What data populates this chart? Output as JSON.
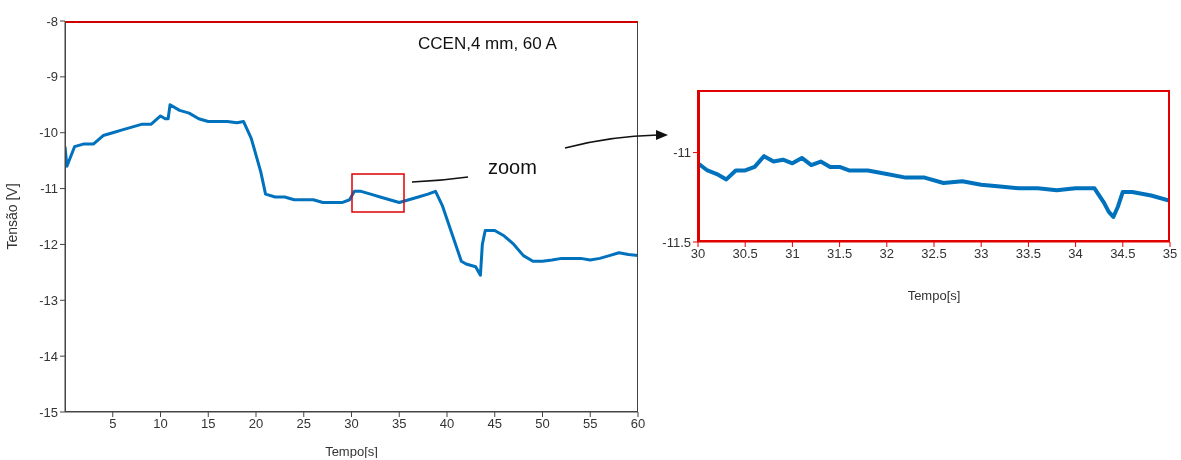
{
  "chart_data": [
    {
      "type": "line",
      "xlabel": "Tempo[s]",
      "ylabel": "Tensão [V]",
      "annotations": [
        "CCEN,4 mm, 60 A",
        "zoom"
      ],
      "xlim": [
        0,
        60
      ],
      "ylim": [
        -15,
        -8
      ],
      "xticks": [
        5,
        10,
        15,
        20,
        25,
        30,
        35,
        40,
        45,
        50,
        55,
        60
      ],
      "yticks": [
        -15,
        -14,
        -13,
        -12,
        -11,
        -10,
        -9,
        -8
      ],
      "grid": false,
      "legend": false,
      "series": [
        {
          "color": "#0072bd",
          "x": [
            0,
            0.2,
            1,
            2,
            3,
            4,
            5,
            6,
            7,
            8,
            9,
            10,
            10.5,
            10.8,
            11,
            12,
            13,
            14,
            15,
            16,
            17,
            18,
            18.7,
            19.5,
            20.5,
            21,
            22,
            23,
            24,
            25,
            26,
            27,
            28,
            29,
            29.8,
            30.3,
            31,
            32,
            33,
            34,
            35,
            36,
            37,
            38,
            38.8,
            39.5,
            40.5,
            41.5,
            42,
            43,
            43.5,
            43.7,
            44,
            45,
            46,
            47,
            48,
            49,
            50,
            51,
            52,
            53,
            54,
            55,
            56,
            57,
            58,
            59,
            60
          ],
          "values": [
            -10.25,
            -10.6,
            -10.25,
            -10.2,
            -10.2,
            -10.05,
            -10.0,
            -9.95,
            -9.9,
            -9.85,
            -9.85,
            -9.7,
            -9.75,
            -9.75,
            -9.5,
            -9.6,
            -9.65,
            -9.75,
            -9.8,
            -9.8,
            -9.8,
            -9.82,
            -9.8,
            -10.1,
            -10.7,
            -11.1,
            -11.15,
            -11.15,
            -11.2,
            -11.2,
            -11.2,
            -11.25,
            -11.25,
            -11.25,
            -11.2,
            -11.05,
            -11.05,
            -11.1,
            -11.15,
            -11.2,
            -11.25,
            -11.2,
            -11.15,
            -11.1,
            -11.05,
            -11.3,
            -11.8,
            -12.3,
            -12.35,
            -12.4,
            -12.55,
            -12.0,
            -11.75,
            -11.75,
            -11.85,
            -12.0,
            -12.2,
            -12.3,
            -12.3,
            -12.28,
            -12.25,
            -12.25,
            -12.25,
            -12.28,
            -12.25,
            -12.2,
            -12.15,
            -12.18,
            -12.2
          ]
        }
      ]
    },
    {
      "type": "line",
      "xlabel": "Tempo[s]",
      "xlim": [
        30,
        35
      ],
      "ylim": [
        -11.5,
        -10.65
      ],
      "xticks": [
        30,
        30.5,
        31,
        31.5,
        32,
        32.5,
        33,
        33.5,
        34,
        34.5,
        35
      ],
      "yticks": [
        -11.5,
        -11
      ],
      "grid": false,
      "legend": false,
      "series": [
        {
          "color": "#0072bd",
          "x": [
            30,
            30.1,
            30.2,
            30.3,
            30.4,
            30.5,
            30.6,
            30.7,
            30.8,
            30.9,
            31,
            31.1,
            31.2,
            31.3,
            31.4,
            31.5,
            31.6,
            31.8,
            32,
            32.2,
            32.4,
            32.6,
            32.8,
            33,
            33.2,
            33.4,
            33.6,
            33.8,
            34,
            34.2,
            34.3,
            34.35,
            34.4,
            34.45,
            34.5,
            34.6,
            34.8,
            35
          ],
          "values": [
            -11.06,
            -11.1,
            -11.12,
            -11.15,
            -11.1,
            -11.1,
            -11.08,
            -11.02,
            -11.05,
            -11.04,
            -11.06,
            -11.03,
            -11.07,
            -11.05,
            -11.08,
            -11.08,
            -11.1,
            -11.1,
            -11.12,
            -11.14,
            -11.14,
            -11.17,
            -11.16,
            -11.18,
            -11.19,
            -11.2,
            -11.2,
            -11.21,
            -11.2,
            -11.2,
            -11.28,
            -11.33,
            -11.36,
            -11.3,
            -11.22,
            -11.22,
            -11.24,
            -11.27
          ]
        }
      ]
    }
  ]
}
